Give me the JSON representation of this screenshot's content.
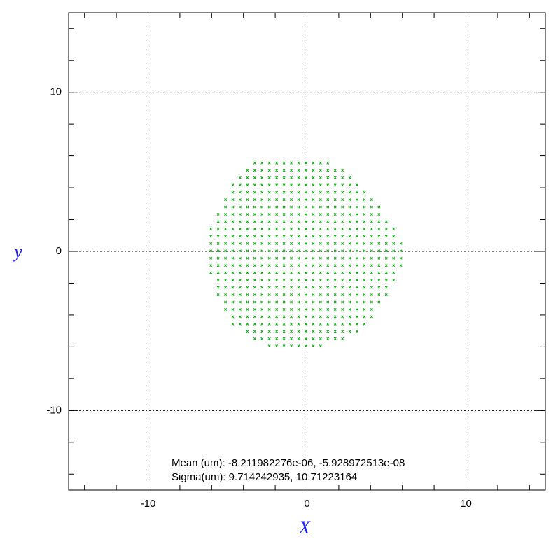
{
  "chart_data": {
    "type": "scatter",
    "xlabel": "X",
    "ylabel": "y",
    "xlim": [
      -15,
      15
    ],
    "ylim": [
      -15,
      15
    ],
    "xticks": [
      -10,
      0,
      10
    ],
    "yticks": [
      -10,
      0,
      10
    ],
    "xminorticks": [
      -14,
      -12,
      -10,
      -8,
      -6,
      -4,
      -2,
      0,
      2,
      4,
      6,
      8,
      10,
      12,
      14
    ],
    "yminorticks": [
      -14,
      -12,
      -10,
      -8,
      -6,
      -4,
      -2,
      0,
      2,
      4,
      6,
      8,
      10,
      12,
      14
    ],
    "grid": true,
    "color": "#00b000",
    "annotations": [
      "Mean (um): -8.211982276e-06, -5.928972513e-08",
      "Sigma(um): 9.714242935, 10.71223164"
    ],
    "rows": [
      {
        "y": 5.55,
        "x": [
          -3.29,
          -2.83,
          -2.37,
          -1.91,
          -1.45,
          -0.99,
          -0.53,
          -0.07,
          0.39,
          0.85,
          1.31
        ]
      },
      {
        "y": 5.09,
        "x": [
          -3.75,
          -3.29,
          -2.83,
          -2.37,
          -1.91,
          -1.45,
          -0.99,
          -0.53,
          -0.07,
          0.39,
          0.85,
          1.31,
          1.77,
          2.23
        ]
      },
      {
        "y": 4.63,
        "x": [
          -4.21,
          -3.75,
          -3.29,
          -2.83,
          -2.37,
          -1.91,
          -1.45,
          -0.99,
          -0.53,
          -0.07,
          0.39,
          0.85,
          1.31,
          1.77,
          2.23,
          2.69
        ]
      },
      {
        "y": 4.17,
        "x": [
          -4.67,
          -4.21,
          -3.75,
          -3.29,
          -2.83,
          -2.37,
          -1.91,
          -1.45,
          -0.99,
          -0.53,
          -0.07,
          0.39,
          0.85,
          1.31,
          1.77,
          2.23,
          2.69,
          3.15
        ]
      },
      {
        "y": 3.71,
        "x": [
          -4.67,
          -4.21,
          -3.75,
          -3.29,
          -2.83,
          -2.37,
          -1.91,
          -1.45,
          -0.99,
          -0.53,
          -0.07,
          0.39,
          0.85,
          1.31,
          1.77,
          2.23,
          2.69,
          3.15,
          3.61
        ]
      },
      {
        "y": 3.25,
        "x": [
          -5.13,
          -4.67,
          -4.21,
          -3.75,
          -3.29,
          -2.83,
          -2.37,
          -1.91,
          -1.45,
          -0.99,
          -0.53,
          -0.07,
          0.39,
          0.85,
          1.31,
          1.77,
          2.23,
          2.69,
          3.15,
          3.61,
          4.07
        ]
      },
      {
        "y": 2.79,
        "x": [
          -5.13,
          -4.67,
          -4.21,
          -3.75,
          -3.29,
          -2.83,
          -2.37,
          -1.91,
          -1.45,
          -0.99,
          -0.53,
          -0.07,
          0.39,
          0.85,
          1.31,
          1.77,
          2.23,
          2.69,
          3.15,
          3.61,
          4.07,
          4.53
        ]
      },
      {
        "y": 2.33,
        "x": [
          -5.59,
          -5.13,
          -4.67,
          -4.21,
          -3.75,
          -3.29,
          -2.83,
          -2.37,
          -1.91,
          -1.45,
          -0.99,
          -0.53,
          -0.07,
          0.39,
          0.85,
          1.31,
          1.77,
          2.23,
          2.69,
          3.15,
          3.61,
          4.07,
          4.53
        ]
      },
      {
        "y": 1.87,
        "x": [
          -5.59,
          -5.13,
          -4.67,
          -4.21,
          -3.75,
          -3.29,
          -2.83,
          -2.37,
          -1.91,
          -1.45,
          -0.99,
          -0.53,
          -0.07,
          0.39,
          0.85,
          1.31,
          1.77,
          2.23,
          2.69,
          3.15,
          3.61,
          4.07,
          4.53,
          4.99
        ]
      },
      {
        "y": 1.41,
        "x": [
          -6.05,
          -5.59,
          -5.13,
          -4.67,
          -4.21,
          -3.75,
          -3.29,
          -2.83,
          -2.37,
          -1.91,
          -1.45,
          -0.99,
          -0.53,
          -0.07,
          0.39,
          0.85,
          1.31,
          1.77,
          2.23,
          2.69,
          3.15,
          3.61,
          4.07,
          4.53,
          4.99,
          5.45
        ]
      },
      {
        "y": 0.95,
        "x": [
          -6.05,
          -5.59,
          -5.13,
          -4.67,
          -4.21,
          -3.75,
          -3.29,
          -2.83,
          -2.37,
          -1.91,
          -1.45,
          -0.99,
          -0.53,
          -0.07,
          0.39,
          0.85,
          1.31,
          1.77,
          2.23,
          2.69,
          3.15,
          3.61,
          4.07,
          4.53,
          4.99,
          5.45
        ]
      },
      {
        "y": 0.49,
        "x": [
          -6.05,
          -5.59,
          -5.13,
          -4.67,
          -4.21,
          -3.75,
          -3.29,
          -2.83,
          -2.37,
          -1.91,
          -1.45,
          -0.99,
          -0.53,
          -0.07,
          0.39,
          0.85,
          1.31,
          1.77,
          2.23,
          2.69,
          3.15,
          3.61,
          4.07,
          4.53,
          4.99,
          5.45,
          5.91
        ]
      },
      {
        "y": 0.03,
        "x": [
          -6.05,
          -5.59,
          -5.13,
          -4.67,
          -4.21,
          -3.75,
          -3.29,
          -2.83,
          -2.37,
          -1.91,
          -1.45,
          -0.99,
          -0.53,
          -0.07,
          0.39,
          0.85,
          1.31,
          1.77,
          2.23,
          2.69,
          3.15,
          3.61,
          4.07,
          4.53,
          4.99,
          5.45,
          5.91
        ]
      },
      {
        "y": -0.43,
        "x": [
          -6.05,
          -5.59,
          -5.13,
          -4.67,
          -4.21,
          -3.75,
          -3.29,
          -2.83,
          -2.37,
          -1.91,
          -1.45,
          -0.99,
          -0.53,
          -0.07,
          0.39,
          0.85,
          1.31,
          1.77,
          2.23,
          2.69,
          3.15,
          3.61,
          4.07,
          4.53,
          4.99,
          5.45,
          5.91
        ]
      },
      {
        "y": -0.89,
        "x": [
          -6.05,
          -5.59,
          -5.13,
          -4.67,
          -4.21,
          -3.75,
          -3.29,
          -2.83,
          -2.37,
          -1.91,
          -1.45,
          -0.99,
          -0.53,
          -0.07,
          0.39,
          0.85,
          1.31,
          1.77,
          2.23,
          2.69,
          3.15,
          3.61,
          4.07,
          4.53,
          4.99,
          5.45,
          5.91
        ]
      },
      {
        "y": -1.35,
        "x": [
          -6.05,
          -5.59,
          -5.13,
          -4.67,
          -4.21,
          -3.75,
          -3.29,
          -2.83,
          -2.37,
          -1.91,
          -1.45,
          -0.99,
          -0.53,
          -0.07,
          0.39,
          0.85,
          1.31,
          1.77,
          2.23,
          2.69,
          3.15,
          3.61,
          4.07,
          4.53,
          4.99,
          5.45
        ]
      },
      {
        "y": -1.81,
        "x": [
          -5.59,
          -5.13,
          -4.67,
          -4.21,
          -3.75,
          -3.29,
          -2.83,
          -2.37,
          -1.91,
          -1.45,
          -0.99,
          -0.53,
          -0.07,
          0.39,
          0.85,
          1.31,
          1.77,
          2.23,
          2.69,
          3.15,
          3.61,
          4.07,
          4.53,
          4.99,
          5.45
        ]
      },
      {
        "y": -2.27,
        "x": [
          -5.59,
          -5.13,
          -4.67,
          -4.21,
          -3.75,
          -3.29,
          -2.83,
          -2.37,
          -1.91,
          -1.45,
          -0.99,
          -0.53,
          -0.07,
          0.39,
          0.85,
          1.31,
          1.77,
          2.23,
          2.69,
          3.15,
          3.61,
          4.07,
          4.53,
          4.99
        ]
      },
      {
        "y": -2.73,
        "x": [
          -5.59,
          -5.13,
          -4.67,
          -4.21,
          -3.75,
          -3.29,
          -2.83,
          -2.37,
          -1.91,
          -1.45,
          -0.99,
          -0.53,
          -0.07,
          0.39,
          0.85,
          1.31,
          1.77,
          2.23,
          2.69,
          3.15,
          3.61,
          4.07,
          4.53,
          4.99
        ]
      },
      {
        "y": -3.19,
        "x": [
          -5.13,
          -4.67,
          -4.21,
          -3.75,
          -3.29,
          -2.83,
          -2.37,
          -1.91,
          -1.45,
          -0.99,
          -0.53,
          -0.07,
          0.39,
          0.85,
          1.31,
          1.77,
          2.23,
          2.69,
          3.15,
          3.61,
          4.07,
          4.53
        ]
      },
      {
        "y": -3.65,
        "x": [
          -5.13,
          -4.67,
          -4.21,
          -3.75,
          -3.29,
          -2.83,
          -2.37,
          -1.91,
          -1.45,
          -0.99,
          -0.53,
          -0.07,
          0.39,
          0.85,
          1.31,
          1.77,
          2.23,
          2.69,
          3.15,
          3.61,
          4.07
        ]
      },
      {
        "y": -4.11,
        "x": [
          -4.67,
          -4.21,
          -3.75,
          -3.29,
          -2.83,
          -2.37,
          -1.91,
          -1.45,
          -0.99,
          -0.53,
          -0.07,
          0.39,
          0.85,
          1.31,
          1.77,
          2.23,
          2.69,
          3.15,
          3.61,
          4.07
        ]
      },
      {
        "y": -4.57,
        "x": [
          -4.67,
          -4.21,
          -3.75,
          -3.29,
          -2.83,
          -2.37,
          -1.91,
          -1.45,
          -0.99,
          -0.53,
          -0.07,
          0.39,
          0.85,
          1.31,
          1.77,
          2.23,
          2.69,
          3.15,
          3.61
        ]
      },
      {
        "y": -5.03,
        "x": [
          -3.75,
          -3.29,
          -2.83,
          -2.37,
          -1.91,
          -1.45,
          -0.99,
          -0.53,
          -0.07,
          0.39,
          0.85,
          1.31,
          1.77,
          2.23,
          2.69,
          3.15
        ]
      },
      {
        "y": -5.49,
        "x": [
          -3.29,
          -2.83,
          -2.37,
          -1.91,
          -1.45,
          -0.99,
          -0.53,
          -0.07,
          0.39,
          0.85,
          1.31,
          1.77,
          2.23
        ]
      },
      {
        "y": -5.95,
        "x": [
          -2.37,
          -1.91,
          -1.45,
          -0.99,
          -0.53,
          -0.07,
          0.39,
          0.85
        ]
      }
    ]
  }
}
